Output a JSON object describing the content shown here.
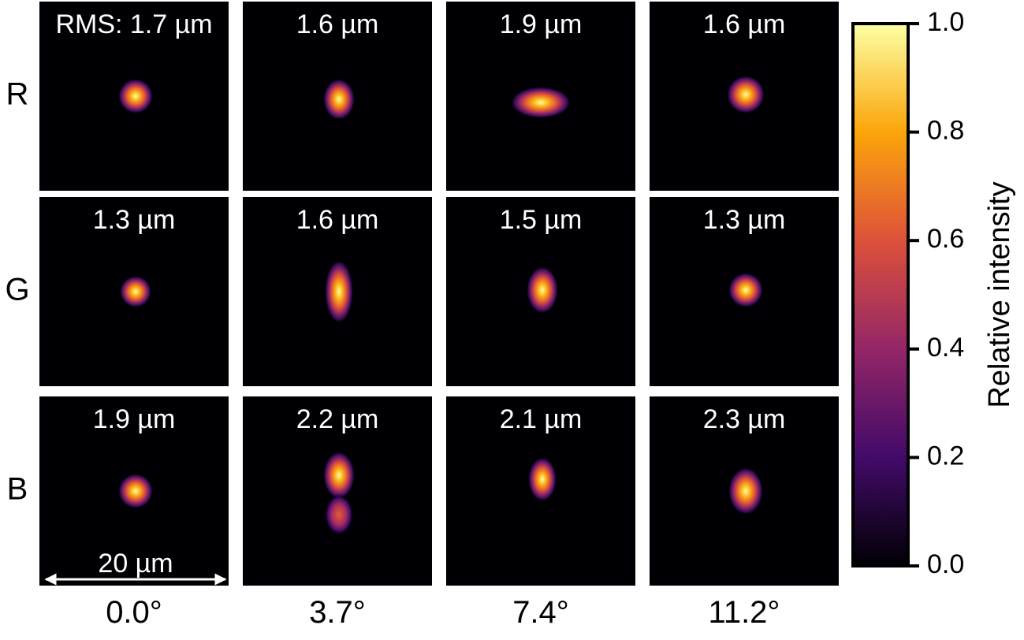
{
  "rows": [
    "R",
    "G",
    "B"
  ],
  "columns": [
    "0.0°",
    "3.7°",
    "7.4°",
    "11.2°"
  ],
  "rms": [
    [
      "RMS: 1.7 µm",
      "1.6 µm",
      "1.9 µm",
      "1.6 µm"
    ],
    [
      "1.3 µm",
      "1.6 µm",
      "1.5 µm",
      "1.3 µm"
    ],
    [
      "1.9 µm",
      "2.2 µm",
      "2.1 µm",
      "2.3 µm"
    ]
  ],
  "scale_bar": "20 µm",
  "colorbar": {
    "label": "Relative intensity",
    "ylim": [
      0,
      1
    ],
    "ticks": [
      {
        "value": 0,
        "label": "0.0"
      },
      {
        "value": 0.2,
        "label": "0.2"
      },
      {
        "value": 0.4,
        "label": "0.4"
      },
      {
        "value": 0.6,
        "label": "0.6"
      },
      {
        "value": 0.8,
        "label": "0.8"
      },
      {
        "value": 1,
        "label": "1.0"
      }
    ]
  }
}
